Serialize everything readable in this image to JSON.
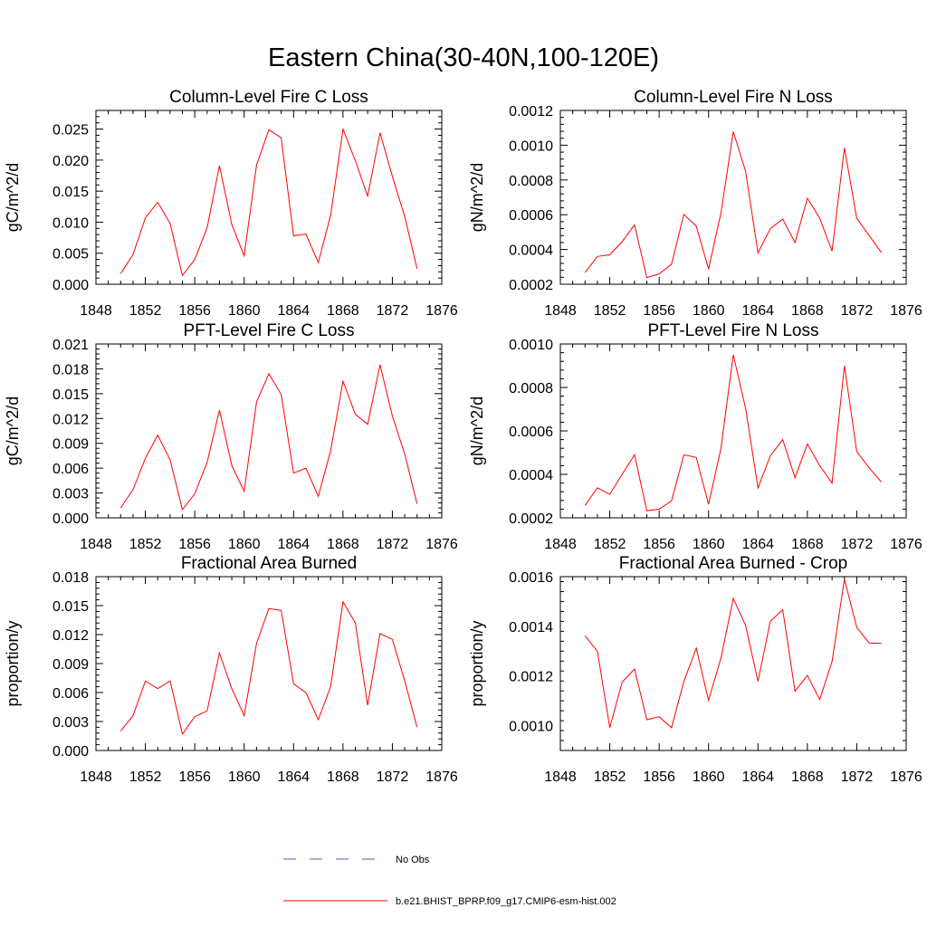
{
  "title": "Eastern China(30-40N,100-120E)",
  "chart_data": [
    {
      "type": "line",
      "title": "Column-Level Fire C Loss",
      "ylabel": "gC/m^2/d",
      "xlim": [
        1848,
        1876
      ],
      "xticks": [
        1848,
        1852,
        1856,
        1860,
        1864,
        1868,
        1872,
        1876
      ],
      "ylim": [
        0,
        0.028
      ],
      "yticks": [
        0.0,
        0.005,
        0.01,
        0.015,
        0.02,
        0.025
      ],
      "ytick_labels": [
        "0.000",
        "0.005",
        "0.010",
        "0.015",
        "0.020",
        "0.025"
      ],
      "x": [
        1850,
        1851,
        1852,
        1853,
        1854,
        1855,
        1856,
        1857,
        1858,
        1859,
        1860,
        1861,
        1862,
        1863,
        1864,
        1865,
        1866,
        1867,
        1868,
        1869,
        1870,
        1871,
        1872,
        1873,
        1874
      ],
      "series": [
        {
          "name": "b.e21.BHIST_BPRP.f09_g17.CMIP6-esm-hist.002",
          "values": [
            0.0017,
            0.0048,
            0.0107,
            0.0132,
            0.0098,
            0.0014,
            0.004,
            0.0091,
            0.0191,
            0.0096,
            0.0046,
            0.0192,
            0.0249,
            0.0236,
            0.0078,
            0.0081,
            0.0035,
            0.0111,
            0.025,
            0.0199,
            0.0142,
            0.0244,
            0.0174,
            0.0109,
            0.0025
          ]
        }
      ]
    },
    {
      "type": "line",
      "title": "Column-Level Fire N Loss",
      "ylabel": "gN/m^2/d",
      "xlim": [
        1848,
        1876
      ],
      "xticks": [
        1848,
        1852,
        1856,
        1860,
        1864,
        1868,
        1872,
        1876
      ],
      "ylim": [
        0.0002,
        0.0012
      ],
      "yticks": [
        0.0002,
        0.0004,
        0.0006,
        0.0008,
        0.001,
        0.0012
      ],
      "ytick_labels": [
        "0.0002",
        "0.0004",
        "0.0006",
        "0.0008",
        "0.0010",
        "0.0012"
      ],
      "x": [
        1850,
        1851,
        1852,
        1853,
        1854,
        1855,
        1856,
        1857,
        1858,
        1859,
        1860,
        1861,
        1862,
        1863,
        1864,
        1865,
        1866,
        1867,
        1868,
        1869,
        1870,
        1871,
        1872,
        1873,
        1874
      ],
      "series": [
        {
          "name": "b.e21.BHIST_BPRP.f09_g17.CMIP6-esm-hist.002",
          "values": [
            0.000267,
            0.00036,
            0.00037,
            0.000445,
            0.000542,
            0.000238,
            0.00026,
            0.000315,
            0.000602,
            0.000535,
            0.000288,
            0.00061,
            0.001078,
            0.00085,
            0.00038,
            0.00052,
            0.000575,
            0.00044,
            0.000695,
            0.00058,
            0.00039,
            0.000985,
            0.00058,
            0.00048,
            0.000382
          ]
        }
      ]
    },
    {
      "type": "line",
      "title": "PFT-Level Fire C Loss",
      "ylabel": "gC/m^2/d",
      "xlim": [
        1848,
        1876
      ],
      "xticks": [
        1848,
        1852,
        1856,
        1860,
        1864,
        1868,
        1872,
        1876
      ],
      "ylim": [
        0,
        0.021
      ],
      "yticks": [
        0.0,
        0.003,
        0.006,
        0.009,
        0.012,
        0.015,
        0.018,
        0.021
      ],
      "ytick_labels": [
        "0.000",
        "0.003",
        "0.006",
        "0.009",
        "0.012",
        "0.015",
        "0.018",
        "0.021"
      ],
      "x": [
        1850,
        1851,
        1852,
        1853,
        1854,
        1855,
        1856,
        1857,
        1858,
        1859,
        1860,
        1861,
        1862,
        1863,
        1864,
        1865,
        1866,
        1867,
        1868,
        1869,
        1870,
        1871,
        1872,
        1873,
        1874
      ],
      "series": [
        {
          "name": "b.e21.BHIST_BPRP.f09_g17.CMIP6-esm-hist.002",
          "values": [
            0.0012,
            0.0034,
            0.0072,
            0.01,
            0.007,
            0.001,
            0.0029,
            0.0067,
            0.013,
            0.0063,
            0.0032,
            0.014,
            0.0174,
            0.0149,
            0.0054,
            0.006,
            0.0026,
            0.0081,
            0.0165,
            0.0125,
            0.0113,
            0.0185,
            0.0123,
            0.0077,
            0.0017
          ]
        }
      ]
    },
    {
      "type": "line",
      "title": "PFT-Level Fire N Loss",
      "ylabel": "gN/m^2/d",
      "xlim": [
        1848,
        1876
      ],
      "xticks": [
        1848,
        1852,
        1856,
        1860,
        1864,
        1868,
        1872,
        1876
      ],
      "ylim": [
        0.0002,
        0.001
      ],
      "yticks": [
        0.0002,
        0.0004,
        0.0006,
        0.0008,
        0.001
      ],
      "ytick_labels": [
        "0.0002",
        "0.0004",
        "0.0006",
        "0.0008",
        "0.0010"
      ],
      "x": [
        1850,
        1851,
        1852,
        1853,
        1854,
        1855,
        1856,
        1857,
        1858,
        1859,
        1860,
        1861,
        1862,
        1863,
        1864,
        1865,
        1866,
        1867,
        1868,
        1869,
        1870,
        1871,
        1872,
        1873,
        1874
      ],
      "series": [
        {
          "name": "b.e21.BHIST_BPRP.f09_g17.CMIP6-esm-hist.002",
          "values": [
            0.000257,
            0.000338,
            0.000308,
            0.0004,
            0.00049,
            0.000232,
            0.00024,
            0.000278,
            0.00049,
            0.000478,
            0.000262,
            0.00052,
            0.00095,
            0.000705,
            0.000338,
            0.000485,
            0.00056,
            0.000385,
            0.00054,
            0.00044,
            0.00036,
            0.0009,
            0.000505,
            0.00043,
            0.000365
          ]
        }
      ]
    },
    {
      "type": "line",
      "title": "Fractional Area Burned",
      "ylabel": "proportion/y",
      "xlim": [
        1848,
        1876
      ],
      "xticks": [
        1848,
        1852,
        1856,
        1860,
        1864,
        1868,
        1872,
        1876
      ],
      "ylim": [
        0,
        0.018
      ],
      "yticks": [
        0.0,
        0.003,
        0.006,
        0.009,
        0.012,
        0.015,
        0.018
      ],
      "ytick_labels": [
        "0.000",
        "0.003",
        "0.006",
        "0.009",
        "0.012",
        "0.015",
        "0.018"
      ],
      "x": [
        1850,
        1851,
        1852,
        1853,
        1854,
        1855,
        1856,
        1857,
        1858,
        1859,
        1860,
        1861,
        1862,
        1863,
        1864,
        1865,
        1866,
        1867,
        1868,
        1869,
        1870,
        1871,
        1872,
        1873,
        1874
      ],
      "series": [
        {
          "name": "b.e21.BHIST_BPRP.f09_g17.CMIP6-esm-hist.002",
          "values": [
            0.002,
            0.0036,
            0.0072,
            0.0064,
            0.0072,
            0.0017,
            0.0035,
            0.0041,
            0.0101,
            0.0064,
            0.0036,
            0.0111,
            0.0147,
            0.0145,
            0.0069,
            0.006,
            0.0032,
            0.0066,
            0.0154,
            0.0132,
            0.0047,
            0.0121,
            0.0115,
            0.0072,
            0.0024
          ]
        }
      ]
    },
    {
      "type": "line",
      "title": "Fractional Area Burned - Crop",
      "ylabel": "proportion/y",
      "xlim": [
        1848,
        1876
      ],
      "xticks": [
        1848,
        1852,
        1856,
        1860,
        1864,
        1868,
        1872,
        1876
      ],
      "ylim": [
        0.0009,
        0.0016
      ],
      "yticks": [
        0.001,
        0.0012,
        0.0014,
        0.0016
      ],
      "ytick_labels": [
        "0.0010",
        "0.0012",
        "0.0014",
        "0.0016"
      ],
      "x": [
        1850,
        1851,
        1852,
        1853,
        1854,
        1855,
        1856,
        1857,
        1858,
        1859,
        1860,
        1861,
        1862,
        1863,
        1864,
        1865,
        1866,
        1867,
        1868,
        1869,
        1870,
        1871,
        1872,
        1873,
        1874
      ],
      "series": [
        {
          "name": "b.e21.BHIST_BPRP.f09_g17.CMIP6-esm-hist.002",
          "values": [
            0.001362,
            0.0013,
            0.000992,
            0.001175,
            0.001228,
            0.001024,
            0.001036,
            0.000992,
            0.001178,
            0.001312,
            0.001102,
            0.001272,
            0.001512,
            0.001404,
            0.001178,
            0.00142,
            0.001467,
            0.001139,
            0.001202,
            0.001105,
            0.001258,
            0.00159,
            0.001396,
            0.001333,
            0.001331
          ]
        }
      ]
    }
  ],
  "legend": {
    "items": [
      {
        "label": "No Obs",
        "color": "#5a5ab4",
        "style": "dashed"
      },
      {
        "label": "b.e21.BHIST_BPRP.f09_g17.CMIP6-esm-hist.002",
        "color": "#ff0000",
        "style": "solid"
      }
    ]
  },
  "colors": {
    "line": "#ff0000",
    "axis": "#000000"
  }
}
